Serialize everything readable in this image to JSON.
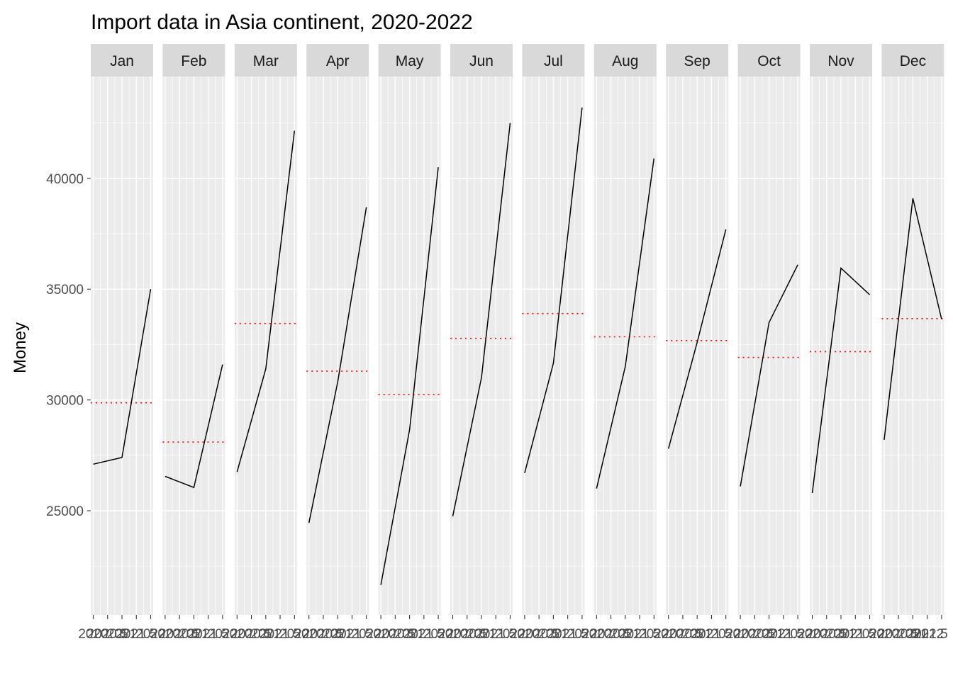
{
  "chart_data": {
    "type": "line",
    "title": "Import data in Asia continent, 2020-2022",
    "xlabel": "",
    "ylabel": "Money",
    "panels": [
      "Jan",
      "Feb",
      "Mar",
      "Apr",
      "May",
      "Jun",
      "Jul",
      "Aug",
      "Sep",
      "Oct",
      "Nov",
      "Dec"
    ],
    "x": [
      2020,
      2021,
      2022
    ],
    "x_tick_labels": [
      "2020",
      "2020.5",
      "2021",
      "2021.5",
      "2022"
    ],
    "series": [
      {
        "panel": "Jan",
        "values": [
          27100,
          27400,
          35000
        ],
        "mean": 29870
      },
      {
        "panel": "Feb",
        "values": [
          26550,
          26050,
          31600
        ],
        "mean": 28100
      },
      {
        "panel": "Mar",
        "values": [
          26750,
          31400,
          42150
        ],
        "mean": 33450
      },
      {
        "panel": "Apr",
        "values": [
          24450,
          30800,
          38700
        ],
        "mean": 31300
      },
      {
        "panel": "May",
        "values": [
          21650,
          28650,
          40500
        ],
        "mean": 30250
      },
      {
        "panel": "Jun",
        "values": [
          24750,
          31000,
          42500
        ],
        "mean": 32780
      },
      {
        "panel": "Jul",
        "values": [
          26700,
          31650,
          43200
        ],
        "mean": 33900
      },
      {
        "panel": "Aug",
        "values": [
          26000,
          31500,
          40900
        ],
        "mean": 32850
      },
      {
        "panel": "Sep",
        "values": [
          27800,
          32600,
          37700
        ],
        "mean": 32680
      },
      {
        "panel": "Oct",
        "values": [
          26100,
          33500,
          36100
        ],
        "mean": 31920
      },
      {
        "panel": "Nov",
        "values": [
          25800,
          35950,
          34750
        ],
        "mean": 32180
      },
      {
        "panel": "Dec",
        "values": [
          28200,
          39100,
          33650
        ],
        "mean": 33670
      }
    ],
    "ylim": [
      20300,
      44600
    ],
    "y_ticks": [
      25000,
      30000,
      35000,
      40000
    ],
    "line_color": "#000000",
    "mean_line_color": "#ff0000",
    "panel_bg": "#ebebeb",
    "strip_bg": "#d9d9d9",
    "grid_color": "#ffffff",
    "grid": true,
    "legend": "none"
  }
}
